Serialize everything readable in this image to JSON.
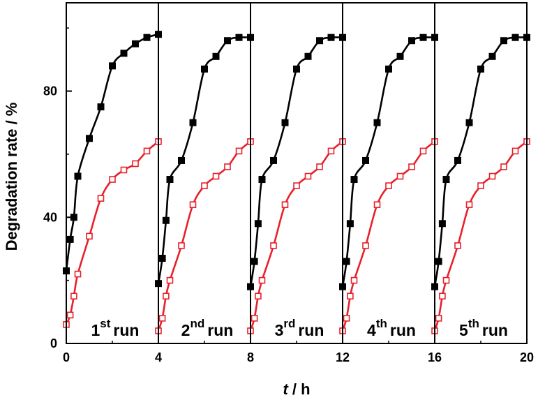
{
  "chart_data": {
    "type": "line",
    "xlabel_italic": "t",
    "xlabel_rest": " / h",
    "ylabel": "Degradation rate / %",
    "xlim": [
      0,
      20
    ],
    "ylim": [
      0,
      108
    ],
    "x_ticks": [
      0,
      4,
      8,
      12,
      16,
      20
    ],
    "y_ticks": [
      0,
      40,
      80
    ],
    "run_boundaries": [
      4,
      8,
      12,
      16
    ],
    "grid": false,
    "runs": [
      {
        "num": "1",
        "sup": "st",
        "word": "run",
        "x_center": 2
      },
      {
        "num": "2",
        "sup": "nd",
        "word": "run",
        "x_center": 6
      },
      {
        "num": "3",
        "sup": "rd",
        "word": "run",
        "x_center": 10
      },
      {
        "num": "4",
        "sup": "th",
        "word": "run",
        "x_center": 14
      },
      {
        "num": "5",
        "sup": "th",
        "word": "run",
        "x_center": 18
      }
    ],
    "series": [
      {
        "color": "#000000",
        "marker": "filled-square",
        "runs": [
          [
            [
              0,
              23
            ],
            [
              0.17,
              33
            ],
            [
              0.33,
              40
            ],
            [
              0.5,
              53
            ],
            [
              1,
              65
            ],
            [
              1.5,
              75
            ],
            [
              2,
              88
            ],
            [
              2.5,
              92
            ],
            [
              3,
              95
            ],
            [
              3.5,
              97
            ],
            [
              4,
              98
            ]
          ],
          [
            [
              4,
              19
            ],
            [
              4.17,
              27
            ],
            [
              4.33,
              39
            ],
            [
              4.5,
              52
            ],
            [
              5,
              58
            ],
            [
              5.5,
              70
            ],
            [
              6,
              87
            ],
            [
              6.5,
              91
            ],
            [
              7,
              96
            ],
            [
              7.5,
              97
            ],
            [
              8,
              97
            ]
          ],
          [
            [
              8,
              18
            ],
            [
              8.17,
              26
            ],
            [
              8.33,
              38
            ],
            [
              8.5,
              52
            ],
            [
              9,
              58
            ],
            [
              9.5,
              70
            ],
            [
              10,
              87
            ],
            [
              10.5,
              91
            ],
            [
              11,
              96
            ],
            [
              11.5,
              97
            ],
            [
              12,
              97
            ]
          ],
          [
            [
              12,
              18
            ],
            [
              12.17,
              26
            ],
            [
              12.33,
              38
            ],
            [
              12.5,
              52
            ],
            [
              13,
              58
            ],
            [
              13.5,
              70
            ],
            [
              14,
              87
            ],
            [
              14.5,
              91
            ],
            [
              15,
              96
            ],
            [
              15.5,
              97
            ],
            [
              16,
              97
            ]
          ],
          [
            [
              16,
              18
            ],
            [
              16.17,
              26
            ],
            [
              16.33,
              38
            ],
            [
              16.5,
              52
            ],
            [
              17,
              58
            ],
            [
              17.5,
              70
            ],
            [
              18,
              87
            ],
            [
              18.5,
              91
            ],
            [
              19,
              96
            ],
            [
              19.5,
              97
            ],
            [
              20,
              97
            ]
          ]
        ]
      },
      {
        "color": "#e8202a",
        "marker": "open-square",
        "runs": [
          [
            [
              0,
              6
            ],
            [
              0.17,
              9
            ],
            [
              0.33,
              15
            ],
            [
              0.5,
              22
            ],
            [
              1,
              34
            ],
            [
              1.5,
              46
            ],
            [
              2,
              52
            ],
            [
              2.5,
              55
            ],
            [
              3,
              57
            ],
            [
              3.5,
              61
            ],
            [
              4,
              64
            ]
          ],
          [
            [
              4,
              4
            ],
            [
              4.17,
              8
            ],
            [
              4.33,
              15
            ],
            [
              4.5,
              20
            ],
            [
              5,
              31
            ],
            [
              5.5,
              44
            ],
            [
              6,
              50
            ],
            [
              6.5,
              53
            ],
            [
              7,
              56
            ],
            [
              7.5,
              61
            ],
            [
              8,
              64
            ]
          ],
          [
            [
              8,
              4
            ],
            [
              8.17,
              8
            ],
            [
              8.33,
              15
            ],
            [
              8.5,
              20
            ],
            [
              9,
              31
            ],
            [
              9.5,
              44
            ],
            [
              10,
              50
            ],
            [
              10.5,
              53
            ],
            [
              11,
              56
            ],
            [
              11.5,
              61
            ],
            [
              12,
              64
            ]
          ],
          [
            [
              12,
              4
            ],
            [
              12.17,
              8
            ],
            [
              12.33,
              15
            ],
            [
              12.5,
              20
            ],
            [
              13,
              31
            ],
            [
              13.5,
              44
            ],
            [
              14,
              50
            ],
            [
              14.5,
              53
            ],
            [
              15,
              56
            ],
            [
              15.5,
              61
            ],
            [
              16,
              64
            ]
          ],
          [
            [
              16,
              4
            ],
            [
              16.17,
              8
            ],
            [
              16.33,
              15
            ],
            [
              16.5,
              20
            ],
            [
              17,
              31
            ],
            [
              17.5,
              44
            ],
            [
              18,
              50
            ],
            [
              18.5,
              53
            ],
            [
              19,
              56
            ],
            [
              19.5,
              61
            ],
            [
              20,
              64
            ]
          ]
        ]
      }
    ]
  }
}
